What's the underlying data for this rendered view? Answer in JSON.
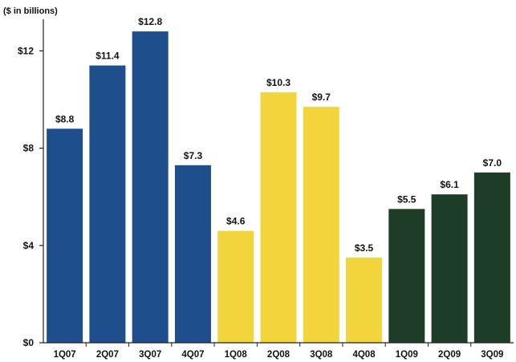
{
  "chart_data": {
    "type": "bar",
    "unit_label": "($ in billions)",
    "title": "",
    "xlabel": "",
    "ylabel": "",
    "ylim": [
      0,
      13.3
    ],
    "yticks": [
      0,
      4,
      8,
      12
    ],
    "ytick_labels": [
      "$0",
      "$4",
      "$8",
      "$12"
    ],
    "grid": false,
    "legend": "none",
    "categories": [
      "1Q07",
      "2Q07",
      "3Q07",
      "4Q07",
      "1Q08",
      "2Q08",
      "3Q08",
      "4Q08",
      "1Q09",
      "2Q09",
      "3Q09"
    ],
    "values": [
      8.8,
      11.4,
      12.8,
      7.3,
      4.6,
      10.3,
      9.7,
      3.5,
      5.5,
      6.1,
      7.0
    ],
    "value_labels": [
      "$8.8",
      "$11.4",
      "$12.8",
      "$7.3",
      "$4.6",
      "$10.3",
      "$9.7",
      "$3.5",
      "$5.5",
      "$6.1",
      "$7.0"
    ],
    "bar_colors": [
      "#1f4e8c",
      "#1f4e8c",
      "#1f4e8c",
      "#1f4e8c",
      "#f2d43c",
      "#f2d43c",
      "#f2d43c",
      "#f2d43c",
      "#1e3d26",
      "#1e3d26",
      "#1e3d26"
    ]
  }
}
